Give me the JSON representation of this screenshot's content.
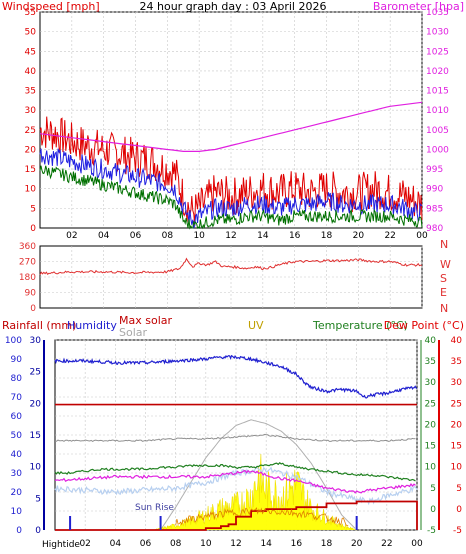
{
  "colors": {
    "wind": "#e00000",
    "wind_avg": "#2020e0",
    "wind_min": "#007000",
    "baro": "#e020e0",
    "dir": "#e03030",
    "rain_axis": "#0000a0",
    "humidity": "#2020d0",
    "maxsolar": "#c00000",
    "solar": "#a8a8a8",
    "uv": "#c0a000",
    "temp": "#208020",
    "dew": "#e00000",
    "grid": "#c8c8c8",
    "axis": "#000000"
  },
  "panels": {
    "wind": {
      "title": "24 hour graph day : 03 April 2026",
      "left_label": "Windspeed [mph]",
      "right_label": "Barometer [hpa]",
      "left_ticks": [
        "0",
        "5",
        "10",
        "15",
        "20",
        "25",
        "30",
        "35",
        "40",
        "45",
        "50",
        "55"
      ],
      "right_ticks": [
        "980",
        "985",
        "990",
        "995",
        "1000",
        "1005",
        "1010",
        "1015",
        "1020",
        "1025",
        "1030",
        "1035"
      ],
      "x_ticks": [
        "02",
        "04",
        "06",
        "08",
        "10",
        "12",
        "14",
        "16",
        "18",
        "20",
        "22",
        "00"
      ]
    },
    "direction": {
      "left_ticks": [
        "0",
        "90",
        "180",
        "270",
        "360"
      ],
      "compass": [
        "N",
        "W",
        "S",
        "E",
        "N"
      ]
    },
    "bottom": {
      "rain_label": "Rainfall (mm)",
      "humidity_label": "Humidity",
      "maxsolar_label": "Max solar",
      "solar_label": "Solar",
      "uv_label": "UV",
      "temp_label": "Temperature (°C)",
      "dew_label": "Dew Point (°C)",
      "left_ticks": [
        "0",
        "10",
        "20",
        "30",
        "40",
        "50",
        "60",
        "70",
        "80",
        "90",
        "100"
      ],
      "rain_ticks": [
        "0",
        "5",
        "10",
        "15",
        "20",
        "25",
        "30"
      ],
      "temp_ticks": [
        "-5",
        "0",
        "5",
        "10",
        "15",
        "20",
        "25",
        "30",
        "35",
        "40"
      ],
      "sunrise_label": "Sun Rise",
      "hightide_label": "Hightide",
      "x_ticks": [
        "02",
        "04",
        "06",
        "08",
        "10",
        "12",
        "14",
        "16",
        "18",
        "20",
        "22",
        "00"
      ]
    }
  },
  "chart_data": [
    {
      "type": "line",
      "title": "24 hour graph day : 03 April 2026",
      "x_unit": "hour",
      "xlim": [
        0,
        24
      ],
      "ylabel": "Windspeed [mph]",
      "ylim": [
        0,
        55
      ],
      "y2label": "Barometer [hpa]",
      "y2lim": [
        980,
        1035
      ],
      "series": [
        {
          "name": "wind_gust",
          "axis": "left",
          "x": [
            0,
            1,
            2,
            3,
            4,
            5,
            6,
            7,
            8,
            8.5,
            9,
            9.5,
            10,
            11,
            12,
            13,
            14,
            15,
            16,
            17,
            18,
            19,
            20,
            21,
            22,
            23,
            23.5,
            24
          ],
          "y": [
            25,
            24,
            22,
            21,
            20,
            19,
            18,
            17,
            15,
            14,
            8,
            4,
            5,
            9,
            8,
            9,
            10,
            9,
            10,
            9,
            10,
            9,
            9,
            10,
            9,
            8,
            7,
            6
          ]
        },
        {
          "name": "wind_avg",
          "axis": "left",
          "x": [
            0,
            1,
            2,
            3,
            4,
            5,
            6,
            7,
            8,
            8.5,
            9,
            9.5,
            10,
            11,
            12,
            13,
            14,
            15,
            16,
            17,
            18,
            19,
            20,
            21,
            22,
            23,
            23.5,
            24
          ],
          "y": [
            19,
            18,
            17,
            16,
            15,
            14,
            13,
            12,
            11,
            10,
            5,
            2,
            3,
            5,
            5,
            6,
            6,
            5,
            6,
            6,
            7,
            6,
            6,
            6,
            6,
            5,
            4,
            4
          ]
        },
        {
          "name": "wind_min",
          "axis": "left",
          "x": [
            0,
            1,
            2,
            3,
            4,
            5,
            6,
            7,
            8,
            8.5,
            9,
            9.5,
            10,
            11,
            12,
            13,
            14,
            15,
            16,
            17,
            18,
            19,
            20,
            21,
            22,
            23,
            23.5,
            24
          ],
          "y": [
            15,
            14,
            13,
            12,
            11,
            10,
            9,
            8,
            7,
            6,
            2,
            0.5,
            1,
            2,
            2,
            3,
            3,
            2,
            3,
            3,
            3,
            3,
            3,
            3,
            3,
            2,
            2,
            1.5
          ]
        },
        {
          "name": "barometer",
          "axis": "right",
          "x": [
            0,
            2,
            4,
            6,
            8,
            9,
            10,
            11,
            12,
            13,
            14,
            15,
            16,
            17,
            18,
            19,
            20,
            21,
            22,
            23,
            24
          ],
          "y": [
            1004,
            1003,
            1002,
            1001,
            1000,
            999.5,
            999.5,
            1000,
            1001,
            1002,
            1003,
            1004,
            1005,
            1006,
            1007,
            1008,
            1009,
            1010,
            1011,
            1011.5,
            1012
          ]
        }
      ]
    },
    {
      "type": "line",
      "x_unit": "hour",
      "xlim": [
        0,
        24
      ],
      "ylim": [
        0,
        360
      ],
      "series": [
        {
          "name": "wind_direction",
          "x": [
            0,
            2,
            4,
            6,
            8,
            8.8,
            9.2,
            9.6,
            10,
            10.5,
            11,
            11.5,
            12,
            12.5,
            13,
            13.5,
            14,
            14.5,
            15,
            16,
            17,
            18,
            19,
            20,
            21,
            22,
            23,
            24
          ],
          "y": [
            200,
            210,
            210,
            205,
            210,
            230,
            285,
            240,
            260,
            250,
            270,
            240,
            240,
            235,
            230,
            240,
            230,
            235,
            250,
            270,
            270,
            275,
            275,
            280,
            270,
            270,
            250,
            250
          ]
        }
      ]
    },
    {
      "type": "line",
      "x_unit": "hour",
      "xlim": [
        0,
        24
      ],
      "ylabel": "Humidity",
      "ylim": [
        0,
        100
      ],
      "y_rain_label": "Rainfall (mm)",
      "y_rain_lim": [
        0,
        30
      ],
      "y2label": "Temperature (°C)",
      "y2lim": [
        -5,
        40
      ],
      "series": [
        {
          "name": "humidity",
          "axis": "left",
          "x": [
            0,
            2,
            4,
            6,
            8,
            10,
            11,
            12,
            13,
            14,
            15,
            16,
            16.5,
            17,
            18,
            19,
            20,
            20.5,
            21,
            22,
            23,
            24
          ],
          "y": [
            89,
            89,
            88,
            88,
            89,
            90,
            91,
            91,
            90,
            88,
            86,
            82,
            78,
            75,
            73,
            74,
            73,
            70,
            71,
            72,
            74,
            75
          ]
        },
        {
          "name": "max_solar",
          "axis": "left",
          "x": [
            0,
            24
          ],
          "y": [
            66,
            66
          ]
        },
        {
          "name": "solar",
          "axis": "left",
          "x": [
            0,
            2,
            4,
            6,
            8,
            10,
            12,
            14,
            16,
            18,
            20,
            22,
            24
          ],
          "y": [
            47,
            47,
            47,
            47,
            48,
            48,
            49,
            50,
            48,
            47,
            47,
            47,
            48
          ]
        },
        {
          "name": "uv",
          "axis": "left",
          "x": [
            6.5,
            8,
            9,
            10,
            11,
            12,
            13,
            13.5,
            14,
            15,
            16,
            17,
            18,
            19,
            20
          ],
          "y": [
            0,
            3,
            6,
            10,
            14,
            16,
            22,
            35,
            26,
            22,
            30,
            14,
            8,
            3,
            0
          ]
        },
        {
          "name": "temperature",
          "axis": "left",
          "x": [
            0,
            1,
            2,
            3,
            4,
            5,
            6,
            7,
            8,
            9,
            10,
            11,
            12,
            13,
            14,
            15,
            16,
            17,
            18,
            19,
            20,
            21,
            22,
            23,
            24
          ],
          "y": [
            30,
            30,
            31,
            32,
            32,
            32,
            32,
            33,
            33,
            34,
            34,
            34,
            33,
            33,
            34,
            35,
            33,
            32,
            31,
            30,
            29,
            29,
            28,
            27,
            26
          ]
        },
        {
          "name": "dew_point",
          "axis": "left",
          "x": [
            0,
            2,
            4,
            6,
            8,
            10,
            12,
            13,
            14,
            15,
            16,
            17,
            18,
            19,
            20,
            21,
            22,
            23,
            24
          ],
          "y": [
            26,
            27,
            28,
            28,
            28,
            28,
            30,
            31,
            29,
            27,
            26,
            24,
            22,
            21,
            20,
            21,
            22,
            23,
            24
          ]
        },
        {
          "name": "light_blue",
          "axis": "left",
          "x": [
            0,
            2,
            4,
            6,
            8,
            10,
            12,
            14,
            15,
            16,
            17,
            18,
            19,
            20,
            21,
            22,
            23,
            24
          ],
          "y": [
            22,
            21,
            20,
            21,
            22,
            25,
            30,
            32,
            30,
            28,
            24,
            20,
            18,
            16,
            15,
            18,
            20,
            22
          ]
        },
        {
          "name": "rainfall",
          "axis": "left",
          "x": [
            0,
            6,
            8,
            10,
            10.5,
            11,
            11.5,
            12,
            13,
            14,
            15,
            16,
            17,
            18,
            19,
            20,
            21,
            22,
            23,
            24
          ],
          "y": [
            0,
            0,
            0,
            1,
            1,
            2,
            3,
            7,
            10,
            11,
            11,
            12,
            12,
            14,
            14,
            15,
            15,
            15,
            15,
            0
          ]
        },
        {
          "name": "daylight_curve",
          "axis": "left",
          "x": [
            7,
            8,
            9,
            10,
            11,
            12,
            13,
            14,
            15,
            16,
            17,
            18,
            19,
            20
          ],
          "y": [
            0,
            12,
            25,
            38,
            48,
            55,
            58,
            56,
            52,
            45,
            35,
            22,
            8,
            0
          ]
        }
      ]
    }
  ]
}
